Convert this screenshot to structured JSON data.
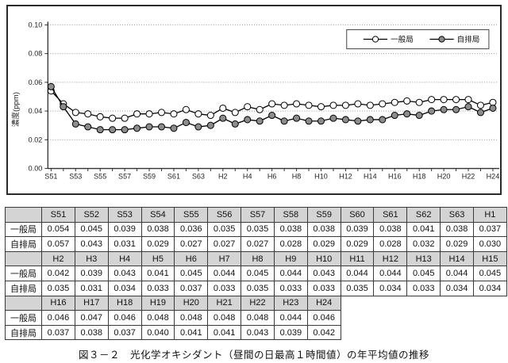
{
  "caption": "図３－２　光化学オキシダント（昼間の日最高１時間値）の年平均値の推移",
  "colors": {
    "frame_border": "#2b2b2b",
    "grid": "#999999",
    "axis": "#333333",
    "general_marker_fill": "#ffffff",
    "roadside_marker_fill": "#8c8c8c",
    "marker_stroke": "#000000",
    "table_header_bg": "#d4d4d4",
    "table_border": "#3a3a3a"
  },
  "chart_data": {
    "type": "line",
    "title": "",
    "xlabel": "",
    "ylabel": "濃度(ppm)",
    "ylim": [
      0.0,
      0.1
    ],
    "ytick_step": 0.02,
    "ytick_labels": [
      "0.00",
      "0.02",
      "0.04",
      "0.06",
      "0.08",
      "0.10"
    ],
    "grid": "horizontal-dotted",
    "legend_position": "top-right-inside",
    "xtick_label_every": 2,
    "categories": [
      "S51",
      "S52",
      "S53",
      "S54",
      "S55",
      "S56",
      "S57",
      "S58",
      "S59",
      "S60",
      "S61",
      "S62",
      "S63",
      "H1",
      "H2",
      "H3",
      "H4",
      "H5",
      "H6",
      "H7",
      "H8",
      "H9",
      "H10",
      "H11",
      "H12",
      "H13",
      "H14",
      "H15",
      "H16",
      "H17",
      "H18",
      "H19",
      "H20",
      "H21",
      "H22",
      "H23",
      "H24"
    ],
    "series": [
      {
        "key": "general",
        "name": "一般局",
        "marker": "open-circle",
        "values": [
          0.054,
          0.045,
          0.039,
          0.038,
          0.036,
          0.035,
          0.035,
          0.038,
          0.038,
          0.039,
          0.038,
          0.041,
          0.038,
          0.037,
          0.042,
          0.039,
          0.043,
          0.041,
          0.045,
          0.044,
          0.045,
          0.044,
          0.043,
          0.044,
          0.044,
          0.045,
          0.044,
          0.045,
          0.046,
          0.047,
          0.046,
          0.048,
          0.048,
          0.048,
          0.048,
          0.044,
          0.046
        ]
      },
      {
        "key": "roadside",
        "name": "自排局",
        "marker": "filled-circle",
        "values": [
          0.057,
          0.043,
          0.031,
          0.029,
          0.027,
          0.027,
          0.027,
          0.028,
          0.029,
          0.029,
          0.028,
          0.032,
          0.029,
          0.03,
          0.035,
          0.031,
          0.034,
          0.033,
          0.037,
          0.033,
          0.035,
          0.033,
          0.033,
          0.035,
          0.034,
          0.033,
          0.034,
          0.034,
          0.037,
          0.038,
          0.037,
          0.04,
          0.041,
          0.041,
          0.043,
          0.039,
          0.042
        ]
      }
    ]
  },
  "table": {
    "columns_per_block": 14,
    "row_labels": [
      "一般局",
      "自排局"
    ],
    "blocks": [
      {
        "years": [
          "S51",
          "S52",
          "S53",
          "S54",
          "S55",
          "S56",
          "S57",
          "S58",
          "S59",
          "S60",
          "S61",
          "S62",
          "S63",
          "H1"
        ],
        "rows": [
          [
            "0.054",
            "0.045",
            "0.039",
            "0.038",
            "0.036",
            "0.035",
            "0.035",
            "0.038",
            "0.038",
            "0.039",
            "0.038",
            "0.041",
            "0.038",
            "0.037"
          ],
          [
            "0.057",
            "0.043",
            "0.031",
            "0.029",
            "0.027",
            "0.027",
            "0.027",
            "0.028",
            "0.029",
            "0.029",
            "0.028",
            "0.032",
            "0.029",
            "0.030"
          ]
        ]
      },
      {
        "years": [
          "H2",
          "H3",
          "H4",
          "H5",
          "H6",
          "H7",
          "H8",
          "H9",
          "H10",
          "H11",
          "H12",
          "H13",
          "H14",
          "H15"
        ],
        "rows": [
          [
            "0.042",
            "0.039",
            "0.043",
            "0.041",
            "0.045",
            "0.044",
            "0.045",
            "0.044",
            "0.043",
            "0.044",
            "0.044",
            "0.045",
            "0.044",
            "0.045"
          ],
          [
            "0.035",
            "0.031",
            "0.034",
            "0.033",
            "0.037",
            "0.033",
            "0.035",
            "0.033",
            "0.033",
            "0.035",
            "0.034",
            "0.033",
            "0.034",
            "0.034"
          ]
        ]
      },
      {
        "years": [
          "H16",
          "H17",
          "H18",
          "H19",
          "H20",
          "H21",
          "H22",
          "H23",
          "H24"
        ],
        "rows": [
          [
            "0.046",
            "0.047",
            "0.046",
            "0.048",
            "0.048",
            "0.048",
            "0.048",
            "0.044",
            "0.046"
          ],
          [
            "0.037",
            "0.038",
            "0.037",
            "0.040",
            "0.041",
            "0.041",
            "0.043",
            "0.039",
            "0.042"
          ]
        ]
      }
    ]
  }
}
